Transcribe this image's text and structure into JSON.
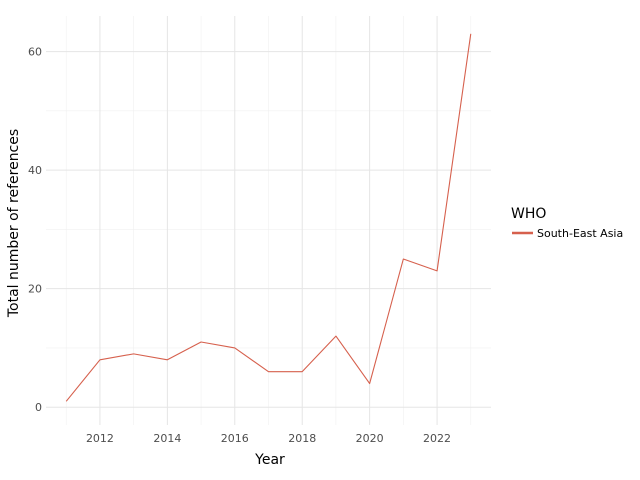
{
  "chart_data": {
    "type": "line",
    "xlabel": "Year",
    "ylabel": "Total number of references",
    "xlim": [
      2010.4,
      2023.6
    ],
    "ylim": [
      -3,
      66
    ],
    "x_ticks": [
      2012,
      2014,
      2016,
      2018,
      2020,
      2022
    ],
    "y_ticks": [
      0,
      20,
      40,
      60
    ],
    "grid": true,
    "legend": {
      "title": "WHO",
      "position": "right"
    },
    "x": [
      2011,
      2012,
      2013,
      2014,
      2015,
      2016,
      2017,
      2018,
      2019,
      2020,
      2021,
      2022,
      2023
    ],
    "series": [
      {
        "name": "South-East Asia",
        "color": "#d6604d",
        "values": [
          1,
          8,
          9,
          8,
          11,
          10,
          6,
          6,
          12,
          4,
          25,
          23,
          63
        ]
      }
    ]
  }
}
